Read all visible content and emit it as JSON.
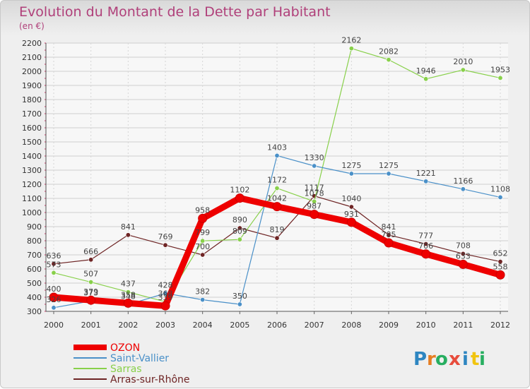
{
  "chart_data": {
    "type": "line",
    "title": "Evolution du Montant de la Dette par Habitant",
    "subtitle": "(en €)",
    "xlabel": "",
    "ylabel": "",
    "x": [
      "2000",
      "2001",
      "2002",
      "2003",
      "2004",
      "2005",
      "2006",
      "2007",
      "2008",
      "2009",
      "2010",
      "2011",
      "2012"
    ],
    "ylim": [
      300,
      2200
    ],
    "yticks": [
      "300",
      "400",
      "500",
      "600",
      "700",
      "800",
      "900",
      "1000",
      "1100",
      "1200",
      "1300",
      "1400",
      "1500",
      "1600",
      "1700",
      "1800",
      "1900",
      "2000",
      "2100",
      "2200"
    ],
    "grid": true,
    "legend_position": "bottom-left",
    "series": [
      {
        "name": "OZON",
        "color": "#ee0000",
        "values": [
          400,
          379,
          358,
          339,
          958,
          1102,
          1042,
          987,
          931,
          785,
          706,
          633,
          558
        ],
        "labels": [
          "400",
          "379",
          "358",
          "339",
          "958",
          "1102",
          "1042",
          "987",
          "931",
          "785",
          "706",
          "633",
          "558"
        ]
      },
      {
        "name": "Saint-Vallier",
        "color": "#4a90c8",
        "values": [
          326,
          373,
          348,
          428,
          382,
          350,
          1403,
          1330,
          1275,
          1275,
          1221,
          1166,
          1108
        ],
        "labels": [
          "326",
          "373",
          "348",
          "428",
          "382",
          "350",
          "1403",
          "1330",
          "1275",
          "1275",
          "1221",
          "1166",
          "1108"
        ]
      },
      {
        "name": "Sarras",
        "color": "#88d04a",
        "values": [
          573,
          507,
          437,
          368,
          799,
          809,
          1172,
          1078,
          2162,
          2082,
          1946,
          2010,
          1953
        ],
        "labels": [
          "573",
          "507",
          "437",
          "368",
          "799",
          "809",
          "1172",
          "1078",
          "2162",
          "2082",
          "1946",
          "2010",
          "1953"
        ]
      },
      {
        "name": "Arras-sur-Rhône",
        "color": "#6e2424",
        "values": [
          636,
          666,
          841,
          769,
          700,
          890,
          819,
          1117,
          1040,
          841,
          777,
          708,
          652
        ],
        "labels": [
          "636",
          "666",
          "841",
          "769",
          "700",
          "890",
          "819",
          "1117",
          "1040",
          "841",
          "777",
          "708",
          "652"
        ]
      }
    ]
  },
  "logo": {
    "letters": [
      "P",
      "r",
      "o",
      "x",
      "i",
      "t",
      "i"
    ],
    "colors": [
      "#2e86c1",
      "#e67e22",
      "#27ae60",
      "#e74c3c",
      "#2e86c1",
      "#f1c40f",
      "#27ae60"
    ]
  }
}
